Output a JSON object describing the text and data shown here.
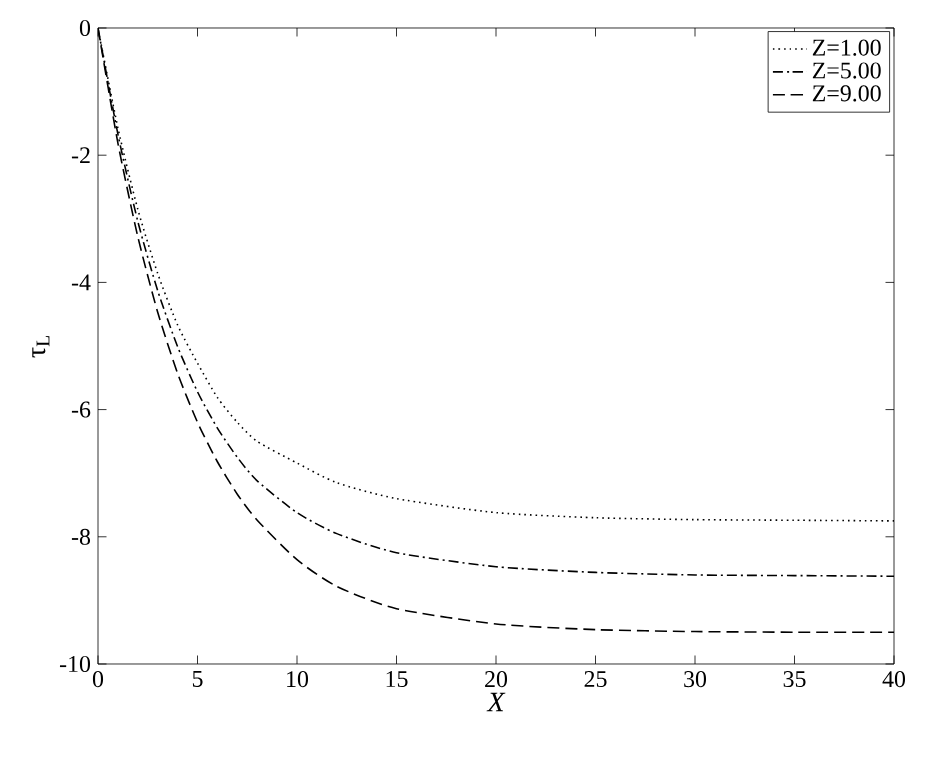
{
  "chart_data": {
    "type": "line",
    "xlabel": "X",
    "ylabel": "τ$_{L}$",
    "xlim": [
      0,
      40
    ],
    "ylim": [
      -10,
      0
    ],
    "xticks": [
      0,
      5,
      10,
      15,
      20,
      25,
      30,
      35,
      40
    ],
    "yticks": [
      -10,
      -8,
      -6,
      -4,
      -2,
      0
    ],
    "grid": false,
    "legend": "top right",
    "marker": "none",
    "x": [
      0,
      1,
      2,
      3,
      4,
      5,
      6,
      7,
      8,
      10,
      12,
      15,
      20,
      25,
      30,
      35,
      40
    ],
    "series": [
      {
        "name": "Z=1.00",
        "color": "#000000",
        "line_style": "dotted",
        "values": [
          0,
          -1.57,
          -2.85,
          -3.86,
          -4.67,
          -5.27,
          -5.81,
          -6.2,
          -6.5,
          -6.84,
          -7.15,
          -7.4,
          -7.62,
          -7.7,
          -7.73,
          -7.74,
          -7.75
        ]
      },
      {
        "name": "Z=5.00",
        "color": "#000000",
        "line_style": "dashdot",
        "values": [
          0,
          -1.67,
          -3.04,
          -4.13,
          -5.01,
          -5.72,
          -6.29,
          -6.75,
          -7.12,
          -7.62,
          -7.95,
          -8.25,
          -8.47,
          -8.56,
          -8.6,
          -8.61,
          -8.62
        ]
      },
      {
        "name": "Z=9.00",
        "color": "#000000",
        "line_style": "dashed",
        "values": [
          0,
          -1.81,
          -3.28,
          -4.47,
          -5.43,
          -6.2,
          -6.82,
          -7.33,
          -7.74,
          -8.36,
          -8.78,
          -9.13,
          -9.37,
          -9.46,
          -9.49,
          -9.5,
          -9.5
        ]
      }
    ]
  }
}
